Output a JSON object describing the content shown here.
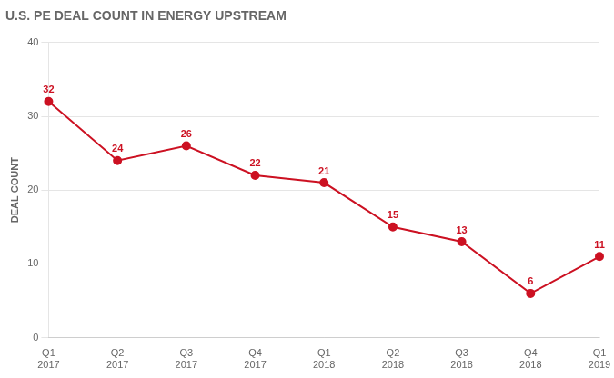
{
  "chart_data": {
    "type": "line",
    "title": "U.S. PE DEAL COUNT IN ENERGY UPSTREAM",
    "categories": [
      "Q1\n2017",
      "Q2\n2017",
      "Q3\n2017",
      "Q4\n2017",
      "Q1\n2018",
      "Q2\n2018",
      "Q3\n2018",
      "Q4\n2018",
      "Q1\n2019"
    ],
    "values": [
      32,
      24,
      26,
      22,
      21,
      15,
      13,
      6,
      11
    ],
    "color": "#cc1122",
    "ylabel": "DEAL COUNT",
    "ylim": [
      0,
      40
    ],
    "yticks": [
      0,
      10,
      20,
      30,
      40
    ],
    "grid": true,
    "data_labels": true
  }
}
